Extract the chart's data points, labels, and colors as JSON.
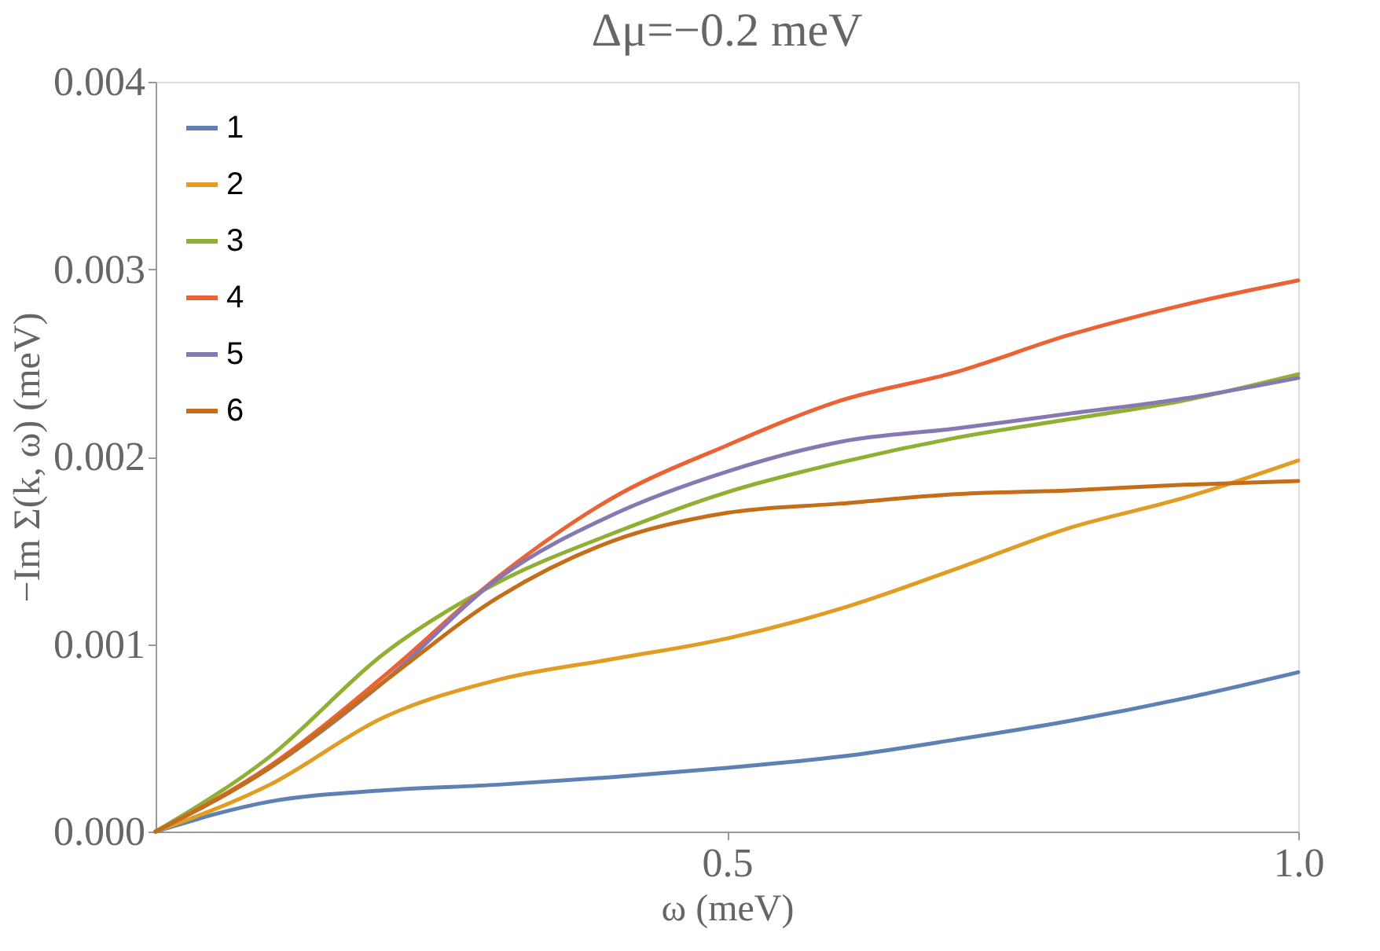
{
  "chart_data": {
    "type": "line",
    "title": "Δμ=−0.2 meV",
    "xlabel": "ω (meV)",
    "ylabel": "−Im Σ(k, ω) (meV)",
    "x": [
      0,
      0.1,
      0.2,
      0.3,
      0.4,
      0.5,
      0.6,
      0.7,
      0.8,
      0.9,
      1.0
    ],
    "series": [
      {
        "name": "1",
        "color": "#5e81b5",
        "values": [
          0,
          0.00016,
          0.00022,
          0.00025,
          0.00029,
          0.00034,
          0.0004,
          0.00049,
          0.00059,
          0.00071,
          0.00085
        ]
      },
      {
        "name": "2",
        "color": "#e19c24",
        "values": [
          0,
          0.00025,
          0.00061,
          0.00081,
          0.00092,
          0.00103,
          0.00119,
          0.0014,
          0.00162,
          0.00178,
          0.00198
        ]
      },
      {
        "name": "3",
        "color": "#8fb032",
        "values": [
          0,
          0.0004,
          0.00095,
          0.00133,
          0.00159,
          0.00181,
          0.00197,
          0.0021,
          0.0022,
          0.0023,
          0.00244
        ]
      },
      {
        "name": "4",
        "color": "#eb6235",
        "values": [
          0,
          0.00035,
          0.00083,
          0.00136,
          0.00178,
          0.00206,
          0.0023,
          0.00245,
          0.00265,
          0.00281,
          0.00294
        ]
      },
      {
        "name": "5",
        "color": "#8778b3",
        "values": [
          0,
          0.00034,
          0.0008,
          0.00135,
          0.00169,
          0.00192,
          0.00208,
          0.00215,
          0.00223,
          0.00231,
          0.00242
        ]
      },
      {
        "name": "6",
        "color": "#c56e1a",
        "values": [
          0,
          0.00034,
          0.0008,
          0.00125,
          0.00155,
          0.0017,
          0.00175,
          0.0018,
          0.00182,
          0.00185,
          0.00187
        ]
      }
    ],
    "xlim": [
      0,
      1
    ],
    "xticks": [
      0.5,
      {
        "value": 1.0,
        "label": "1.0"
      }
    ],
    "ylim": [
      0,
      0.004
    ],
    "yticks": [
      {
        "value": 0,
        "label": "0.000"
      },
      {
        "value": 0.001,
        "label": "0.001"
      },
      {
        "value": 0.002,
        "label": "0.002"
      },
      {
        "value": 0.003,
        "label": "0.003"
      },
      {
        "value": 0.004,
        "label": "0.004"
      }
    ],
    "grid": false,
    "legend": "top left",
    "line_style": "solid",
    "marker": "none"
  }
}
